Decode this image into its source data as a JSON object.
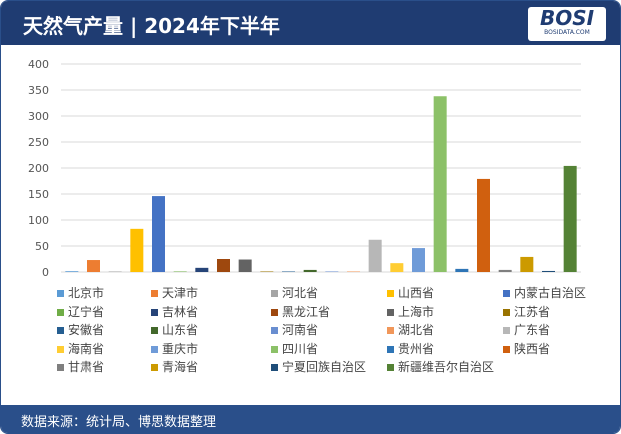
{
  "header": {
    "title": "天然气产量 | 2024年下半年",
    "logo": "BOSI BOSIDATA.COM"
  },
  "footer": {
    "source": "数据来源：统计局、博思数据整理"
  },
  "chart_data": {
    "type": "bar",
    "title": "天然气产量 | 2024年下半年",
    "ylim": [
      0,
      400
    ],
    "yticks": [
      0,
      50,
      100,
      150,
      200,
      250,
      300,
      350,
      400
    ],
    "grid": true,
    "legend_position": "bottom",
    "categories": [
      "北京市",
      "天津市",
      "河北省",
      "山西省",
      "内蒙古自治区",
      "辽宁省",
      "吉林省",
      "黑龙江省",
      "上海市",
      "江苏省",
      "安徽省",
      "山东省",
      "河南省",
      "湖北省",
      "广东省",
      "海南省",
      "重庆市",
      "四川省",
      "贵州省",
      "陕西省",
      "甘肃省",
      "青海省",
      "宁夏回族自治区",
      "新疆维吾尔自治区"
    ],
    "values": [
      1.5,
      23,
      1,
      83,
      146,
      1,
      8,
      25,
      24,
      1,
      1,
      4,
      1,
      1,
      62,
      17,
      46,
      338,
      6,
      179,
      4,
      29,
      2,
      204
    ],
    "colors": [
      "#5b9bd5",
      "#ed7d31",
      "#a5a5a5",
      "#ffc000",
      "#4472c4",
      "#70ad47",
      "#264478",
      "#9e480e",
      "#636363",
      "#997300",
      "#255e91",
      "#43682b",
      "#698ed0",
      "#f1975a",
      "#b7b7b7",
      "#ffcd33",
      "#6f9bd8",
      "#8cc168",
      "#2e75b6",
      "#d0600f",
      "#7f7f7f",
      "#cc9a00",
      "#1f4e79",
      "#548235"
    ]
  }
}
